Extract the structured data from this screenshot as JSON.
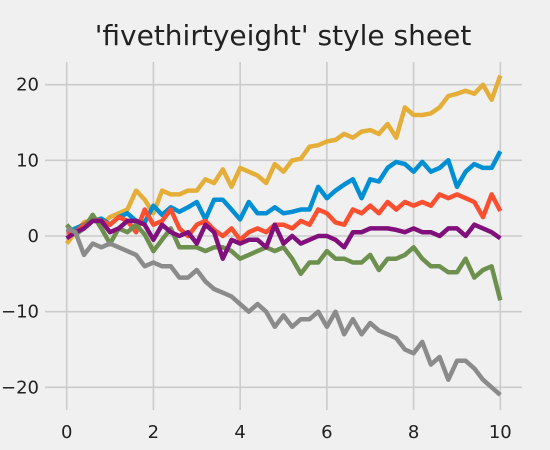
{
  "chart_data": {
    "type": "line",
    "title": "'fivethirtyeight' style sheet",
    "xlabel": "",
    "ylabel": "",
    "xlim": [
      -0.5,
      10.5
    ],
    "ylim": [
      -23,
      23
    ],
    "xticks": [
      0,
      2,
      4,
      6,
      8,
      10
    ],
    "yticks": [
      -20,
      -10,
      0,
      10,
      20
    ],
    "xtick_labels": [
      "0",
      "2",
      "4",
      "6",
      "8",
      "10"
    ],
    "ytick_labels": [
      "−20",
      "−10",
      "0",
      "10",
      "20"
    ],
    "grid": true,
    "x": [
      0.0,
      0.2,
      0.4,
      0.6,
      0.8,
      1.0,
      1.2,
      1.4,
      1.6,
      1.8,
      2.0,
      2.2,
      2.4,
      2.6,
      2.8,
      3.0,
      3.2,
      3.4,
      3.6,
      3.8,
      4.0,
      4.2,
      4.4,
      4.6,
      4.8,
      5.0,
      5.2,
      5.4,
      5.6,
      5.8,
      6.0,
      6.2,
      6.4,
      6.6,
      6.8,
      7.0,
      7.2,
      7.4,
      7.6,
      7.8,
      8.0,
      8.2,
      8.4,
      8.6,
      8.8,
      9.0,
      9.2,
      9.4,
      9.6,
      9.8,
      10.0
    ],
    "series": [
      {
        "color": "#e5ae38",
        "values": [
          -1.0,
          0.5,
          1.8,
          2.2,
          1.5,
          2.5,
          3.0,
          3.5,
          6.0,
          4.8,
          3.0,
          6.0,
          5.5,
          5.5,
          6.0,
          6.0,
          7.5,
          7.0,
          8.8,
          6.5,
          9.0,
          8.5,
          8.0,
          7.0,
          9.5,
          8.5,
          10.0,
          10.2,
          11.8,
          12.0,
          12.5,
          12.7,
          13.5,
          13.0,
          13.8,
          14.0,
          13.5,
          14.8,
          13.0,
          17.0,
          16.0,
          16.0,
          16.2,
          17.0,
          18.5,
          18.8,
          19.2,
          18.8,
          20.0,
          18.0,
          21.2
        ]
      },
      {
        "color": "#008fd5",
        "values": [
          0.5,
          1.0,
          1.5,
          2.0,
          2.3,
          1.5,
          2.5,
          3.0,
          2.0,
          1.8,
          4.0,
          2.8,
          3.8,
          3.2,
          3.8,
          4.5,
          2.2,
          4.8,
          4.8,
          3.5,
          2.2,
          4.5,
          3.0,
          3.0,
          3.8,
          3.0,
          3.2,
          3.5,
          3.5,
          6.5,
          5.0,
          6.0,
          6.8,
          7.5,
          5.0,
          7.5,
          7.2,
          9.0,
          9.8,
          9.5,
          8.5,
          9.8,
          8.5,
          9.0,
          10.0,
          6.5,
          8.5,
          9.5,
          9.0,
          9.0,
          11.2
        ]
      },
      {
        "color": "#fc4f30",
        "values": [
          0.5,
          0.5,
          1.5,
          2.3,
          2.0,
          1.5,
          2.5,
          2.0,
          0.5,
          3.5,
          1.5,
          2.0,
          3.5,
          1.0,
          0.0,
          1.5,
          2.0,
          0.8,
          0.0,
          1.0,
          -0.5,
          0.5,
          1.0,
          0.5,
          1.5,
          1.5,
          1.0,
          2.0,
          1.5,
          3.5,
          3.0,
          1.8,
          1.5,
          3.5,
          3.0,
          4.0,
          3.0,
          4.5,
          3.5,
          4.5,
          4.0,
          4.5,
          4.0,
          5.5,
          5.0,
          5.5,
          5.0,
          4.5,
          2.5,
          5.5,
          3.3
        ]
      },
      {
        "color": "#6d904f",
        "values": [
          1.5,
          0.2,
          1.0,
          2.8,
          1.0,
          -1.0,
          1.0,
          0.5,
          1.5,
          0.2,
          -2.0,
          -0.5,
          1.0,
          -1.5,
          -1.5,
          -1.5,
          -2.0,
          -1.5,
          -1.5,
          -2.0,
          -3.0,
          -2.5,
          -2.0,
          -1.5,
          -2.0,
          -1.5,
          -3.0,
          -5.0,
          -3.5,
          -3.5,
          -2.0,
          -3.0,
          -3.0,
          -3.5,
          -3.5,
          -2.5,
          -4.5,
          -3.0,
          -3.0,
          -2.5,
          -1.5,
          -3.0,
          -4.0,
          -4.0,
          -4.8,
          -4.8,
          -3.0,
          -5.5,
          -4.5,
          -4.0,
          -8.5
        ]
      },
      {
        "color": "#810f7c",
        "values": [
          -0.3,
          0.5,
          1.0,
          2.0,
          2.0,
          0.5,
          1.0,
          2.0,
          2.0,
          1.5,
          -0.5,
          1.5,
          0.5,
          0.0,
          0.5,
          -1.0,
          1.5,
          0.5,
          -3.0,
          -0.5,
          -1.0,
          -0.5,
          -0.5,
          -1.5,
          1.5,
          -1.0,
          0.0,
          -1.0,
          -0.5,
          0.0,
          0.0,
          -0.5,
          -1.5,
          0.5,
          0.5,
          1.0,
          1.0,
          1.0,
          0.8,
          0.5,
          1.0,
          0.5,
          0.5,
          0.0,
          1.0,
          1.0,
          0.0,
          1.5,
          1.0,
          0.5,
          -0.3
        ]
      },
      {
        "color": "#8b8b8b",
        "values": [
          1.0,
          0.5,
          -2.5,
          -1.0,
          -1.5,
          -1.0,
          -1.5,
          -2.0,
          -2.5,
          -4.0,
          -3.5,
          -4.0,
          -4.0,
          -5.5,
          -5.5,
          -4.5,
          -6.0,
          -7.0,
          -7.5,
          -8.0,
          -9.0,
          -10.0,
          -9.0,
          -10.0,
          -12.0,
          -10.5,
          -12.0,
          -11.0,
          -11.0,
          -10.0,
          -12.0,
          -10.0,
          -13.0,
          -11.0,
          -13.0,
          -11.5,
          -12.5,
          -13.0,
          -13.5,
          -15.0,
          -15.5,
          -14.0,
          -17.0,
          -16.0,
          -19.0,
          -16.5,
          -16.5,
          -17.5,
          -19.0,
          -20.0,
          -21.0
        ]
      }
    ]
  }
}
